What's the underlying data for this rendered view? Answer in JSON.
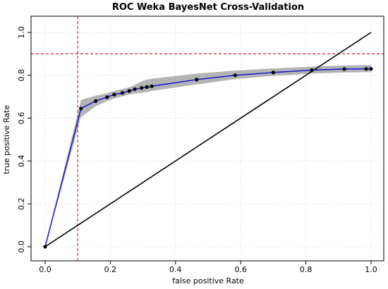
{
  "chart_data": {
    "type": "line",
    "title": "ROC Weka BayesNet Cross-Validation",
    "xlabel": "false positive Rate",
    "ylabel": "true positive Rate",
    "xlim": [
      0,
      1
    ],
    "ylim": [
      0,
      1
    ],
    "x_ticks": [
      "0.0",
      "0.2",
      "0.4",
      "0.6",
      "0.8",
      "1.0"
    ],
    "y_ticks": [
      "0.0",
      "0.2",
      "0.4",
      "0.6",
      "0.8",
      "1.0"
    ],
    "grid": true,
    "series": [
      {
        "kind": "roc-curve",
        "color": "#1f1fd0",
        "x": [
          0.0,
          0.11,
          0.155,
          0.19,
          0.212,
          0.237,
          0.258,
          0.275,
          0.296,
          0.312,
          0.327,
          0.465,
          0.583,
          0.7,
          0.818,
          0.918,
          0.985,
          1.0
        ],
        "y": [
          0.0,
          0.645,
          0.68,
          0.698,
          0.71,
          0.718,
          0.727,
          0.735,
          0.741,
          0.745,
          0.749,
          0.78,
          0.8,
          0.813,
          0.824,
          0.829,
          0.83,
          0.83
        ]
      },
      {
        "kind": "confidence-band",
        "color": "#b4b4b4",
        "x": [
          0.0,
          0.11,
          0.155,
          0.19,
          0.212,
          0.237,
          0.258,
          0.275,
          0.296,
          0.312,
          0.327,
          0.465,
          0.583,
          0.7,
          0.818,
          0.918,
          0.985,
          1.0
        ],
        "lower": [
          0.0,
          0.605,
          0.655,
          0.68,
          0.692,
          0.702,
          0.71,
          0.715,
          0.718,
          0.722,
          0.727,
          0.757,
          0.782,
          0.797,
          0.808,
          0.813,
          0.815,
          0.815
        ],
        "upper": [
          0.0,
          0.685,
          0.705,
          0.716,
          0.727,
          0.736,
          0.744,
          0.755,
          0.772,
          0.78,
          0.784,
          0.808,
          0.822,
          0.832,
          0.84,
          0.846,
          0.848,
          0.848
        ]
      },
      {
        "kind": "diagonal",
        "color": "#000000",
        "x": [
          0.0,
          1.0
        ],
        "y": [
          0.0,
          1.0
        ]
      }
    ],
    "reference_lines": [
      {
        "axis": "x",
        "value": 0.1,
        "color": "#d62728",
        "style": "dashed"
      },
      {
        "axis": "y",
        "value": 0.9,
        "color": "#d62728",
        "style": "dashed"
      }
    ]
  }
}
